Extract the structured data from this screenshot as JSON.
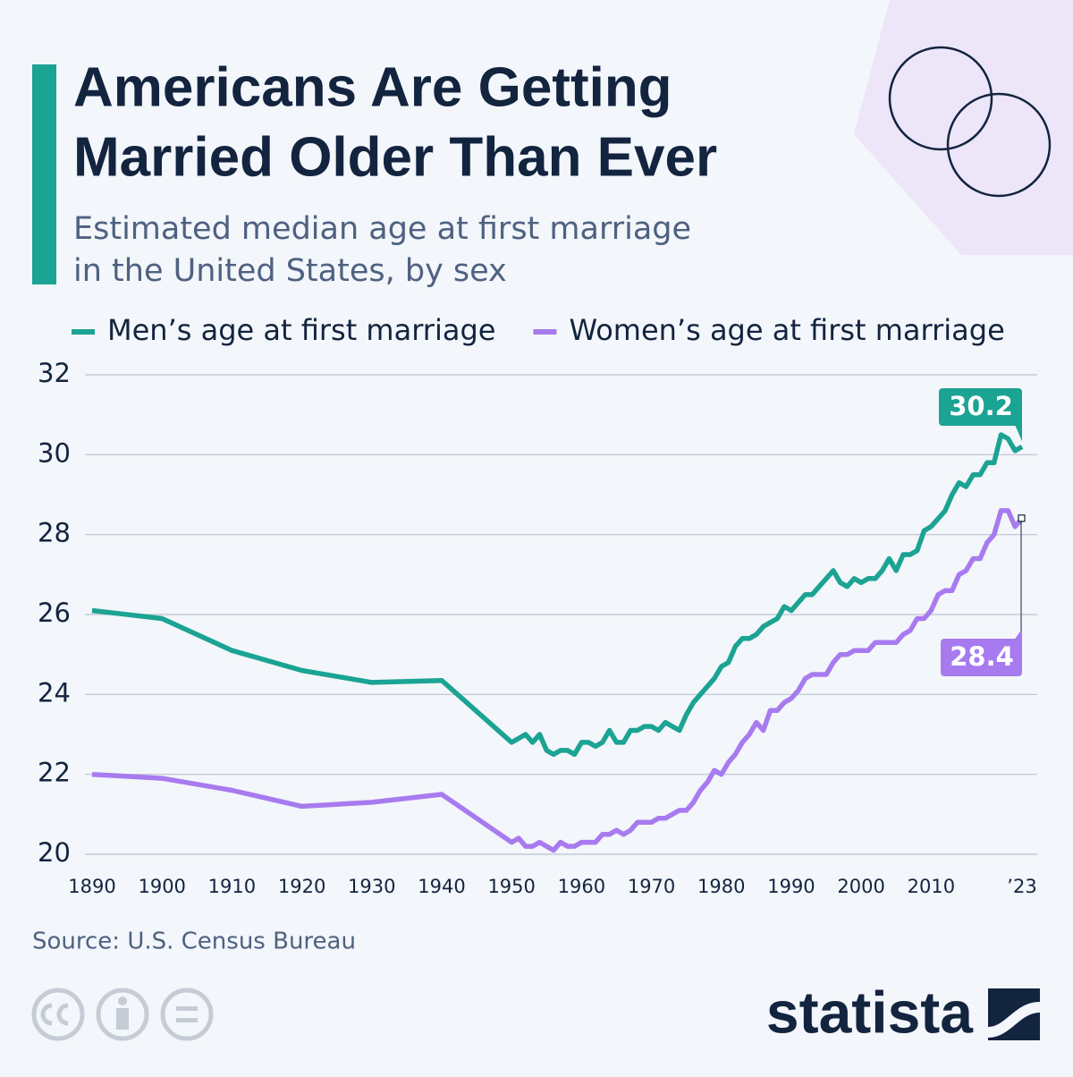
{
  "chart_data": {
    "type": "line",
    "title": [
      "Americans Are Getting",
      "Married Older Than Ever"
    ],
    "subtitle": [
      "Estimated median age at first marriage",
      "in the United States, by sex"
    ],
    "source": "Source: U.S. Census Bureau",
    "brand": "statista",
    "x": [
      1890,
      1900,
      1910,
      1920,
      1930,
      1940,
      1950,
      1951,
      1952,
      1953,
      1954,
      1955,
      1956,
      1957,
      1958,
      1959,
      1960,
      1961,
      1962,
      1963,
      1964,
      1965,
      1966,
      1967,
      1968,
      1969,
      1970,
      1971,
      1972,
      1973,
      1974,
      1975,
      1976,
      1977,
      1978,
      1979,
      1980,
      1981,
      1982,
      1983,
      1984,
      1985,
      1986,
      1987,
      1988,
      1989,
      1990,
      1991,
      1992,
      1993,
      1994,
      1995,
      1996,
      1997,
      1998,
      1999,
      2000,
      2001,
      2002,
      2003,
      2004,
      2005,
      2006,
      2007,
      2008,
      2009,
      2010,
      2011,
      2012,
      2013,
      2014,
      2015,
      2016,
      2017,
      2018,
      2019,
      2020,
      2021,
      2022,
      2023
    ],
    "series": [
      {
        "name": "Men’s age at first marriage",
        "color": "#1ba393",
        "values": [
          26.1,
          25.9,
          25.1,
          24.6,
          24.3,
          24.35,
          22.8,
          22.9,
          23.0,
          22.8,
          23.0,
          22.6,
          22.5,
          22.6,
          22.6,
          22.5,
          22.8,
          22.8,
          22.7,
          22.8,
          23.1,
          22.8,
          22.8,
          23.1,
          23.1,
          23.2,
          23.2,
          23.1,
          23.3,
          23.2,
          23.1,
          23.5,
          23.8,
          24.0,
          24.2,
          24.4,
          24.7,
          24.8,
          25.2,
          25.4,
          25.4,
          25.5,
          25.7,
          25.8,
          25.9,
          26.2,
          26.1,
          26.3,
          26.5,
          26.5,
          26.7,
          26.9,
          27.1,
          26.8,
          26.7,
          26.9,
          26.8,
          26.9,
          26.9,
          27.1,
          27.4,
          27.1,
          27.5,
          27.5,
          27.6,
          28.1,
          28.2,
          28.4,
          28.6,
          29.0,
          29.3,
          29.2,
          29.5,
          29.5,
          29.8,
          29.8,
          30.5,
          30.4,
          30.1,
          30.2
        ]
      },
      {
        "name": "Women’s age at first marriage",
        "color": "#a77bef",
        "values": [
          22.0,
          21.9,
          21.6,
          21.2,
          21.3,
          21.5,
          20.3,
          20.4,
          20.2,
          20.2,
          20.3,
          20.2,
          20.1,
          20.3,
          20.2,
          20.2,
          20.3,
          20.3,
          20.3,
          20.5,
          20.5,
          20.6,
          20.5,
          20.6,
          20.8,
          20.8,
          20.8,
          20.9,
          20.9,
          21.0,
          21.1,
          21.1,
          21.3,
          21.6,
          21.8,
          22.1,
          22.0,
          22.3,
          22.5,
          22.8,
          23.0,
          23.3,
          23.1,
          23.6,
          23.6,
          23.8,
          23.9,
          24.1,
          24.4,
          24.5,
          24.5,
          24.5,
          24.8,
          25.0,
          25.0,
          25.1,
          25.1,
          25.1,
          25.3,
          25.3,
          25.3,
          25.3,
          25.5,
          25.6,
          25.9,
          25.9,
          26.1,
          26.5,
          26.6,
          26.6,
          27.0,
          27.1,
          27.4,
          27.4,
          27.8,
          28.0,
          28.6,
          28.6,
          28.2,
          28.4
        ]
      }
    ],
    "xlim": [
      1890,
      2023
    ],
    "xticks": [
      1890,
      1900,
      1910,
      1920,
      1930,
      1940,
      1950,
      1960,
      1970,
      1980,
      1990,
      2000,
      2010,
      {
        "value": 2023,
        "label": "’23"
      }
    ],
    "ylim": [
      20,
      32
    ],
    "yticks": [
      20,
      22,
      24,
      26,
      28,
      30,
      32
    ],
    "grid": true
  }
}
